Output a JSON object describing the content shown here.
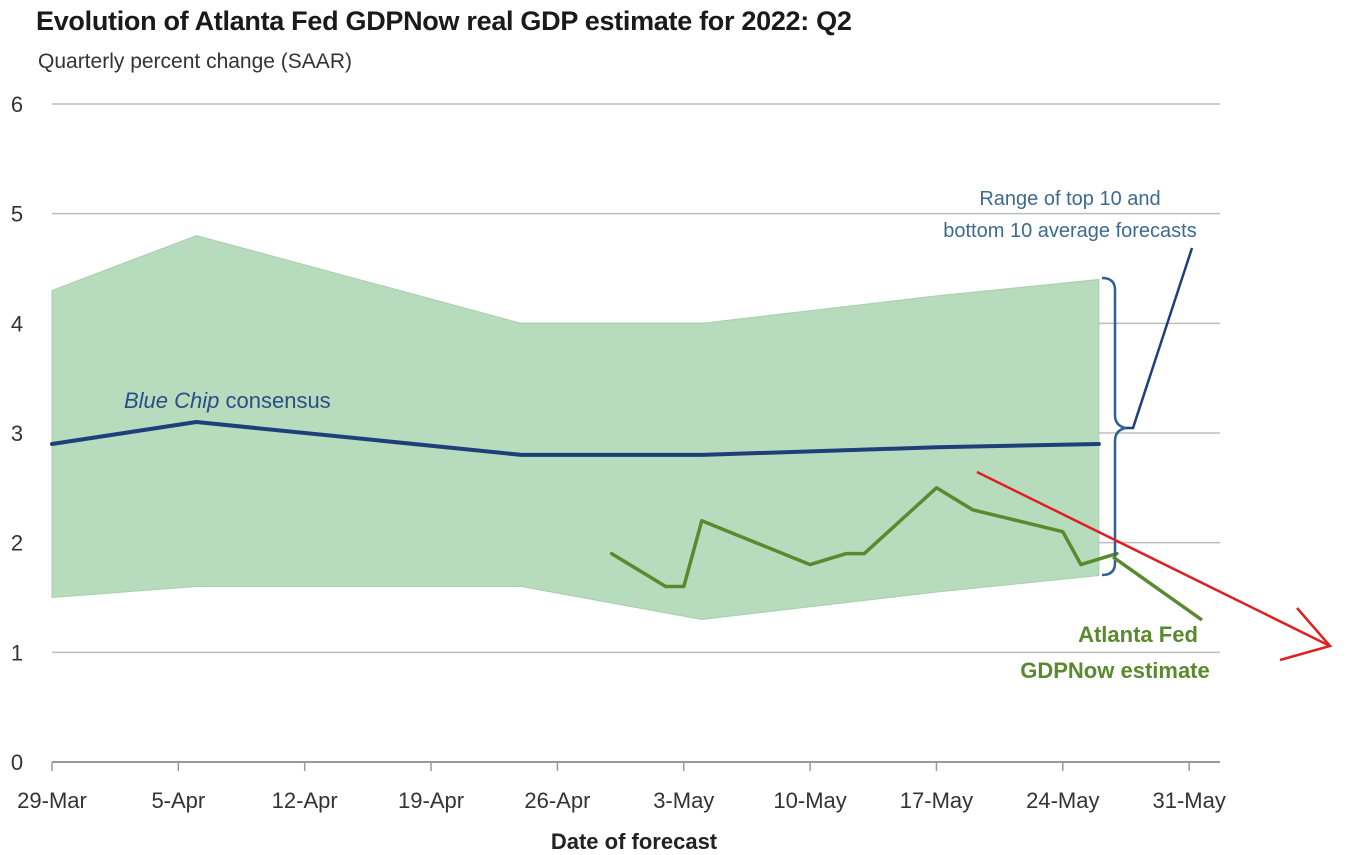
{
  "chart_data": {
    "type": "line",
    "title": "Evolution of Atlanta Fed GDPNow real GDP estimate for 2022: Q2",
    "subtitle": "Quarterly percent change (SAAR)",
    "xlabel": "Date of forecast",
    "ylabel": "",
    "ylim": [
      0,
      6
    ],
    "yticks": [
      "0",
      "1",
      "2",
      "3",
      "4",
      "5",
      "6"
    ],
    "xticks": [
      "29-Mar",
      "5-Apr",
      "12-Apr",
      "19-Apr",
      "26-Apr",
      "3-May",
      "10-May",
      "17-May",
      "24-May",
      "31-May"
    ],
    "x_domain_days": [
      0,
      63
    ],
    "grid": true,
    "range_band": {
      "name": "Range of top 10 and bottom 10 average forecasts",
      "x_days": [
        0,
        8,
        26,
        36,
        49,
        58
      ],
      "upper": [
        4.3,
        4.8,
        4.0,
        4.0,
        4.25,
        4.4
      ],
      "lower": [
        1.5,
        1.6,
        1.6,
        1.3,
        1.55,
        1.7
      ],
      "color": "#b7dbbd"
    },
    "series": [
      {
        "name": "Blue Chip consensus",
        "name_italic": "Blue Chip",
        "name_rest": " consensus",
        "color": "#1f3f7a",
        "x_days": [
          0,
          8,
          26,
          36,
          49,
          58
        ],
        "values": [
          2.9,
          3.1,
          2.8,
          2.8,
          2.87,
          2.9
        ]
      },
      {
        "name": "Atlanta Fed GDPNow estimate",
        "label_line1": "Atlanta Fed",
        "label_line2": "GDPNow estimate",
        "color": "#5a8a2e",
        "x_days": [
          31,
          34,
          35,
          36,
          39,
          42,
          44,
          45,
          49,
          51,
          56,
          57,
          59
        ],
        "values": [
          1.9,
          1.6,
          1.6,
          2.2,
          2.0,
          1.8,
          1.9,
          1.9,
          2.5,
          2.3,
          2.1,
          1.8,
          1.9
        ]
      }
    ],
    "range_label_line1": "Range of top 10 and",
    "range_label_line2": "bottom 10 average forecasts",
    "annotation_arrow_color": "#e02020"
  }
}
